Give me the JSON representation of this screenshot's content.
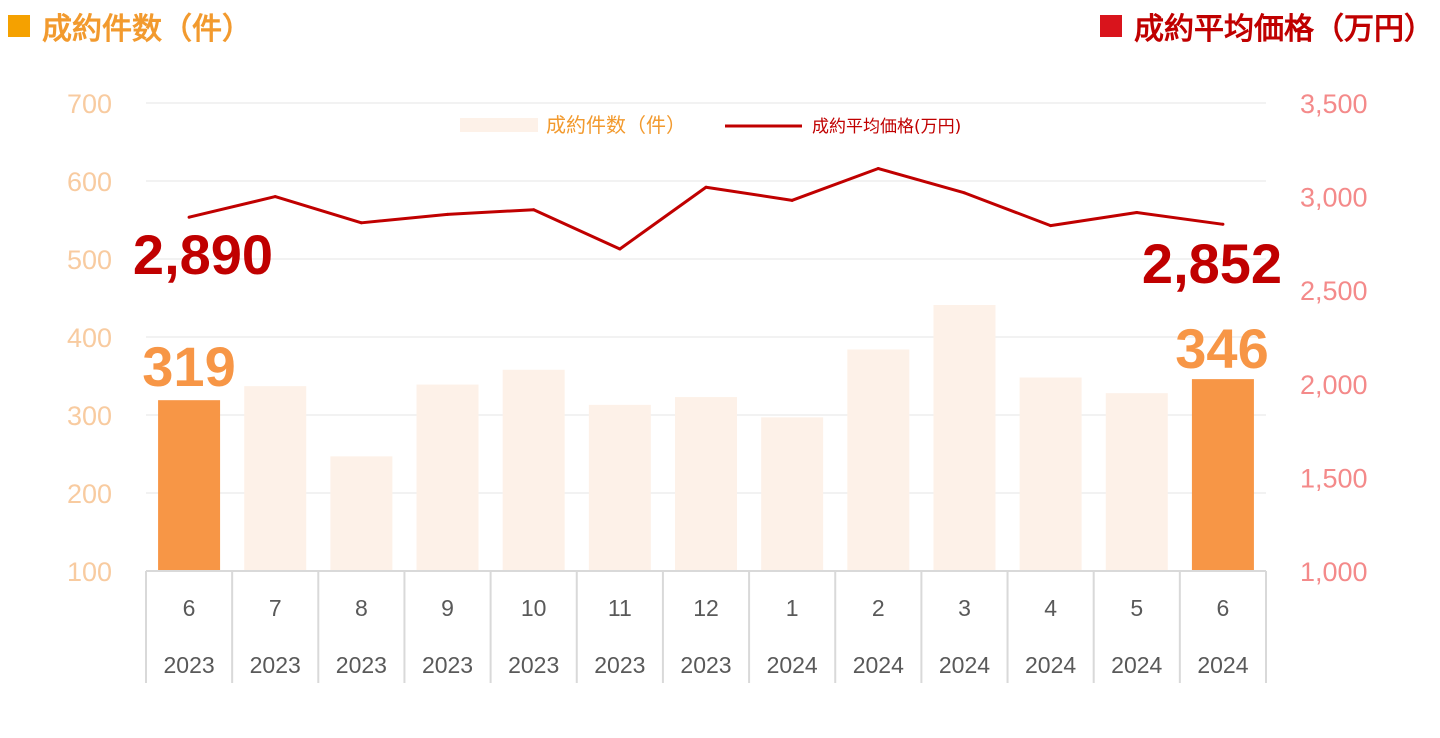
{
  "left_title": "成約件数（件）",
  "right_title": "成約平均価格（万円）",
  "colors": {
    "left_title": "#f29a2e",
    "left_marker": "#f5a100",
    "right_title": "#c00000",
    "right_marker": "#d9141c",
    "bar_default": "#fdf1e8",
    "bar_highlight": "#f79646",
    "line": "#c00000",
    "left_axis": "#f8cba0",
    "right_axis": "#f48a8a"
  },
  "chart_data": {
    "type": "bar",
    "legend": {
      "position": "top-center",
      "entries": [
        "成約件数（件）",
        "成約平均価格(万円)"
      ]
    },
    "categories": [
      {
        "month": "6",
        "year": "2023"
      },
      {
        "month": "7",
        "year": "2023"
      },
      {
        "month": "8",
        "year": "2023"
      },
      {
        "month": "9",
        "year": "2023"
      },
      {
        "month": "10",
        "year": "2023"
      },
      {
        "month": "11",
        "year": "2023"
      },
      {
        "month": "12",
        "year": "2023"
      },
      {
        "month": "1",
        "year": "2024"
      },
      {
        "month": "2",
        "year": "2024"
      },
      {
        "month": "3",
        "year": "2024"
      },
      {
        "month": "4",
        "year": "2024"
      },
      {
        "month": "5",
        "year": "2024"
      },
      {
        "month": "6",
        "year": "2024"
      }
    ],
    "series": [
      {
        "name": "成約件数（件）",
        "type": "bar",
        "axis": "left",
        "values": [
          319,
          337,
          247,
          339,
          358,
          313,
          323,
          297,
          384,
          441,
          348,
          328,
          346
        ],
        "highlight": [
          0,
          12
        ],
        "data_labels": {
          "0": "319",
          "12": "346"
        }
      },
      {
        "name": "成約平均価格(万円)",
        "type": "line",
        "axis": "right",
        "values": [
          2890,
          3000,
          2860,
          2905,
          2930,
          2720,
          3050,
          2980,
          3150,
          3020,
          2845,
          2915,
          2852
        ],
        "data_labels": {
          "0": "2,890",
          "12": "2,852"
        }
      }
    ],
    "left_axis": {
      "min": 100,
      "max": 700,
      "ticks": [
        100,
        200,
        300,
        400,
        500,
        600,
        700
      ],
      "tick_labels": [
        "100",
        "200",
        "300",
        "400",
        "500",
        "600",
        "700"
      ]
    },
    "right_axis": {
      "min": 1000,
      "max": 3500,
      "ticks": [
        1000,
        1500,
        2000,
        2500,
        3000,
        3500
      ],
      "tick_labels": [
        "1,000",
        "1,500",
        "2,000",
        "2,500",
        "3,000",
        "3,500"
      ]
    },
    "grid": true
  }
}
